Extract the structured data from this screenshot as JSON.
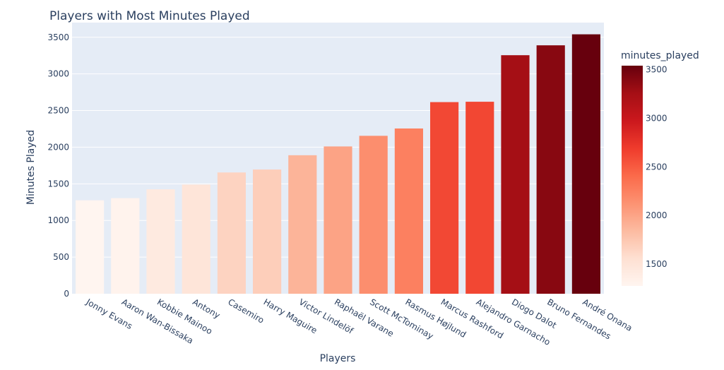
{
  "chart_data": {
    "type": "bar",
    "title": "Players with Most Minutes Played",
    "xlabel": "Players",
    "ylabel": "Minutes Played",
    "ylim": [
      0,
      3700
    ],
    "yticks": [
      0,
      500,
      1000,
      1500,
      2000,
      2500,
      3000,
      3500
    ],
    "grid": true,
    "categories": [
      "Jonny Evans",
      "Aaron Wan-Bissaka",
      "Kobbie Mainoo",
      "Antony",
      "Casemiro",
      "Harry Maguire",
      "Victor Lindelöf",
      "Raphaël Varane",
      "Scott McTominay",
      "Rasmus Højlund",
      "Marcus Rashford",
      "Alejandro Garnacho",
      "Diogo Dalot",
      "Bruno Fernandes",
      "André Onana"
    ],
    "values": [
      1275,
      1305,
      1425,
      1490,
      1655,
      1695,
      1890,
      2010,
      2155,
      2255,
      2615,
      2620,
      3255,
      3390,
      3540
    ],
    "colorbar": {
      "title": "minutes_played",
      "colorscale": "Reds",
      "range": [
        1275,
        3540
      ],
      "ticks": [
        1500,
        2000,
        2500,
        3000,
        3500
      ]
    }
  }
}
